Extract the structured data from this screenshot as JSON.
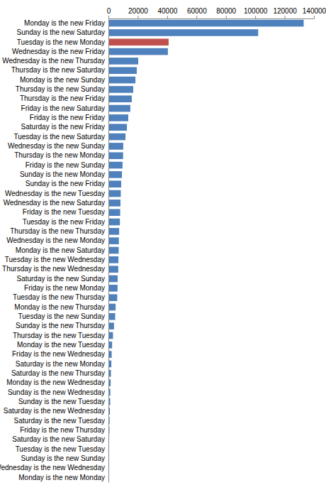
{
  "chart_data": {
    "type": "bar",
    "orientation": "horizontal",
    "categories": [
      "Monday is the new Friday",
      "Sunday is the new Saturday",
      "Tuesday is the new Monday",
      "Wednesday is the new Friday",
      "Wednesday is the new Thursday",
      "Thursday is the new Saturday",
      "Monday is the new Sunday",
      "Thursday is the new Sunday",
      "Thursday is the new Friday",
      "Friday is the new Saturday",
      "Friday is the new Friday",
      "Saturday is the new Friday",
      "Tuesday is the new Saturday",
      "Wednesday is the new Sunday",
      "Thursday is the new Monday",
      "Friday is the new Sunday",
      "Sunday is the new Monday",
      "Sunday is the new Friday",
      "Wednesday is the new Tuesday",
      "Wednesday is the new Saturday",
      "Friday is the new Tuesday",
      "Tuesday is the new Friday",
      "Thursday is the new Thursday",
      "Wednesday is the new Monday",
      "Monday is the new Saturday",
      "Tuesday is the new Wednesday",
      "Thursday is the new Wednesday",
      "Saturday is the new Sunday",
      "Friday is the new Monday",
      "Tuesday is the new Thursday",
      "Monday is the new Thursday",
      "Tuesday is the new Sunday",
      "Sunday is the new Thursday",
      "Thursday is the new Tuesday",
      "Monday is the new Tuesday",
      "Friday is the new Wednesday",
      "Saturday is the new Monday",
      "Saturday is the new Thursday",
      "Monday is the new Wednesday",
      "Sunday is the new Wednesday",
      "Sunday is the new Tuesday",
      "Saturday is the new Wednesday",
      "Saturday is the new Tuesday",
      "Friday is the new Thursday",
      "Saturday is the new Saturday",
      "Tuesday is the new Tuesday",
      "Sunday is the new Sunday",
      "Wednesday is the new Wednesday",
      "Monday is the new Monday"
    ],
    "values": [
      133000,
      102000,
      41000,
      40500,
      20300,
      19300,
      18400,
      16900,
      15900,
      14900,
      13500,
      12600,
      11600,
      10100,
      10000,
      9600,
      9200,
      8700,
      8400,
      8200,
      8000,
      7800,
      7300,
      7100,
      7000,
      6800,
      6700,
      6300,
      6200,
      6000,
      4900,
      4600,
      3800,
      3100,
      2500,
      2200,
      2000,
      1700,
      1500,
      1300,
      1200,
      1000,
      800,
      700,
      400,
      300,
      200,
      150,
      100
    ],
    "colors": [
      "#4f81bd",
      "#4f81bd",
      "#c0504d",
      "#4f81bd",
      "#4f81bd",
      "#4f81bd",
      "#4f81bd",
      "#4f81bd",
      "#4f81bd",
      "#4f81bd",
      "#4f81bd",
      "#4f81bd",
      "#4f81bd",
      "#4f81bd",
      "#4f81bd",
      "#4f81bd",
      "#4f81bd",
      "#4f81bd",
      "#4f81bd",
      "#4f81bd",
      "#4f81bd",
      "#4f81bd",
      "#4f81bd",
      "#4f81bd",
      "#4f81bd",
      "#4f81bd",
      "#4f81bd",
      "#4f81bd",
      "#4f81bd",
      "#4f81bd",
      "#4f81bd",
      "#4f81bd",
      "#4f81bd",
      "#4f81bd",
      "#4f81bd",
      "#4f81bd",
      "#4f81bd",
      "#4f81bd",
      "#4f81bd",
      "#4f81bd",
      "#4f81bd",
      "#4f81bd",
      "#4f81bd",
      "#4f81bd",
      "#4f81bd",
      "#4f81bd",
      "#4f81bd",
      "#4f81bd",
      "#4f81bd"
    ],
    "xlim": [
      0,
      140000
    ],
    "xticks": [
      0,
      20000,
      40000,
      60000,
      80000,
      100000,
      120000,
      140000
    ],
    "grid": false
  }
}
